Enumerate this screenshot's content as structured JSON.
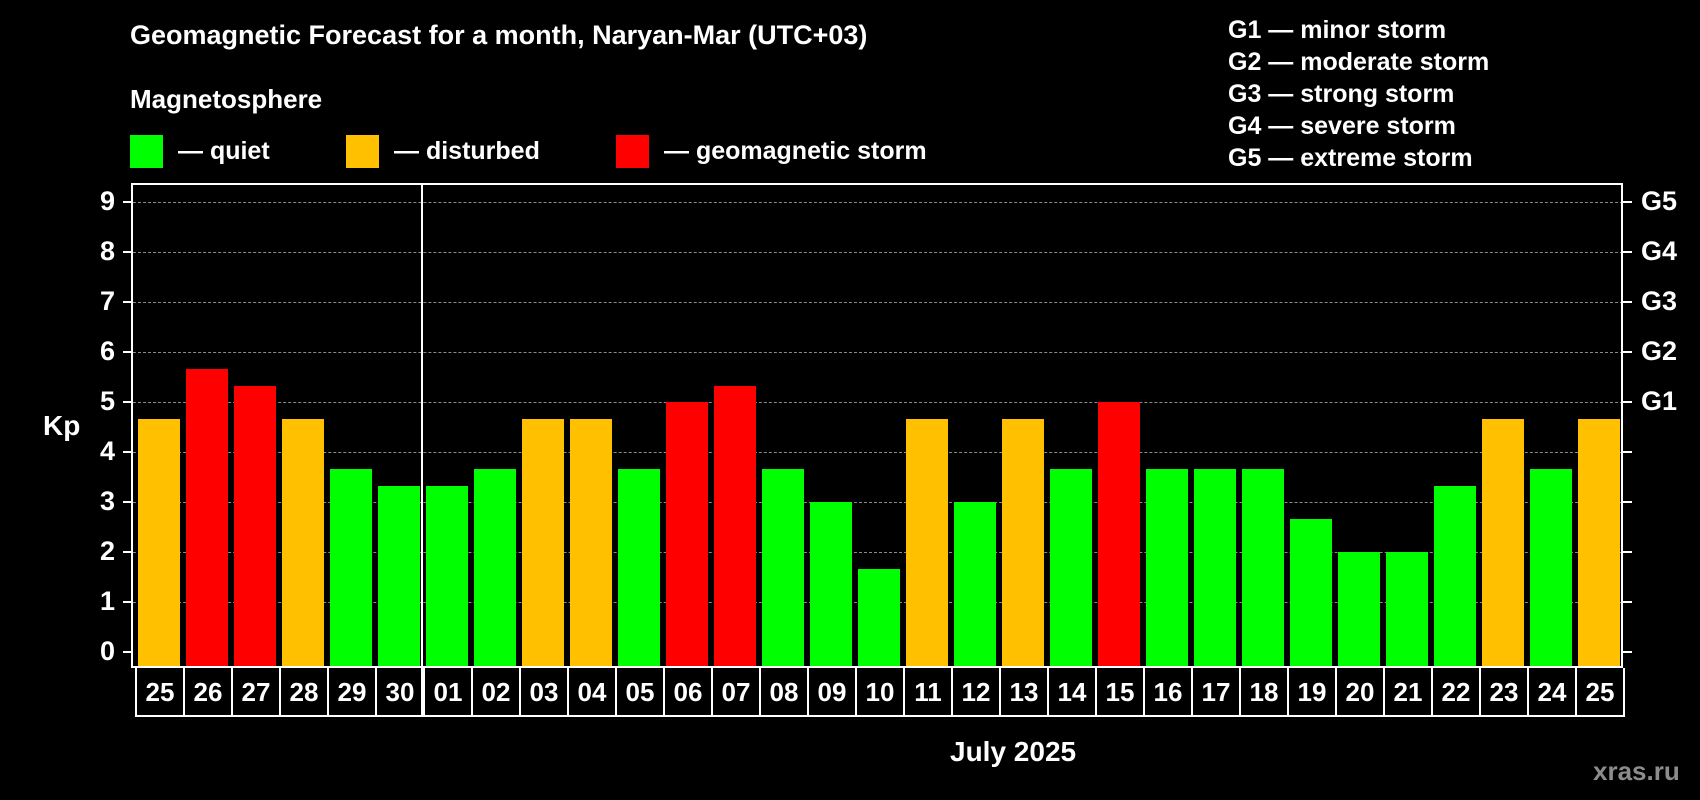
{
  "header": {
    "title": "Geomagnetic Forecast for a month, Naryan-Mar (UTC+03)",
    "subtitle": "Magnetosphere"
  },
  "legend": [
    {
      "label": "— quiet",
      "color": "#00ff00"
    },
    {
      "label": "— disturbed",
      "color": "#ffc000"
    },
    {
      "label": "— geomagnetic storm",
      "color": "#ff0000"
    }
  ],
  "storm_scale": [
    "G1 — minor storm",
    "G2 — moderate storm",
    "G3 — strong storm",
    "G4 — severe storm",
    "G5 — extreme storm"
  ],
  "axis": {
    "ylabel": "Kp",
    "yticks": [
      "0",
      "1",
      "2",
      "3",
      "4",
      "5",
      "6",
      "7",
      "8",
      "9"
    ],
    "right_labels": {
      "5": "G1",
      "6": "G2",
      "7": "G3",
      "8": "G4",
      "9": "G5"
    },
    "month_label": "July 2025"
  },
  "brand": "xras.ru",
  "chart_data": {
    "type": "bar",
    "title": "Geomagnetic Forecast for a month, Naryan-Mar (UTC+03)",
    "xlabel": "July 2025",
    "ylabel": "Kp",
    "ylim": [
      0,
      9
    ],
    "grid": true,
    "legend_position": "top",
    "categories": [
      "25",
      "26",
      "27",
      "28",
      "29",
      "30",
      "01",
      "02",
      "03",
      "04",
      "05",
      "06",
      "07",
      "08",
      "09",
      "10",
      "11",
      "12",
      "13",
      "14",
      "15",
      "16",
      "17",
      "18",
      "19",
      "20",
      "21",
      "22",
      "23",
      "24",
      "25"
    ],
    "values": [
      4.67,
      5.67,
      5.33,
      4.67,
      3.67,
      3.33,
      3.33,
      3.67,
      4.67,
      4.67,
      3.67,
      5.0,
      5.33,
      3.67,
      3.0,
      1.67,
      4.67,
      3.0,
      4.67,
      3.67,
      5.0,
      3.67,
      3.67,
      3.67,
      2.67,
      2.0,
      2.0,
      3.33,
      4.67,
      3.67,
      4.67
    ],
    "status": [
      "disturbed",
      "storm",
      "storm",
      "disturbed",
      "quiet",
      "quiet",
      "quiet",
      "quiet",
      "disturbed",
      "disturbed",
      "quiet",
      "storm",
      "storm",
      "quiet",
      "quiet",
      "quiet",
      "disturbed",
      "quiet",
      "disturbed",
      "quiet",
      "storm",
      "quiet",
      "quiet",
      "quiet",
      "quiet",
      "quiet",
      "quiet",
      "quiet",
      "disturbed",
      "quiet",
      "disturbed"
    ],
    "status_colors": {
      "quiet": "#00ff00",
      "disturbed": "#ffc000",
      "storm": "#ff0000"
    },
    "right_axis": {
      "5": "G1",
      "6": "G2",
      "7": "G3",
      "8": "G4",
      "9": "G5"
    }
  }
}
